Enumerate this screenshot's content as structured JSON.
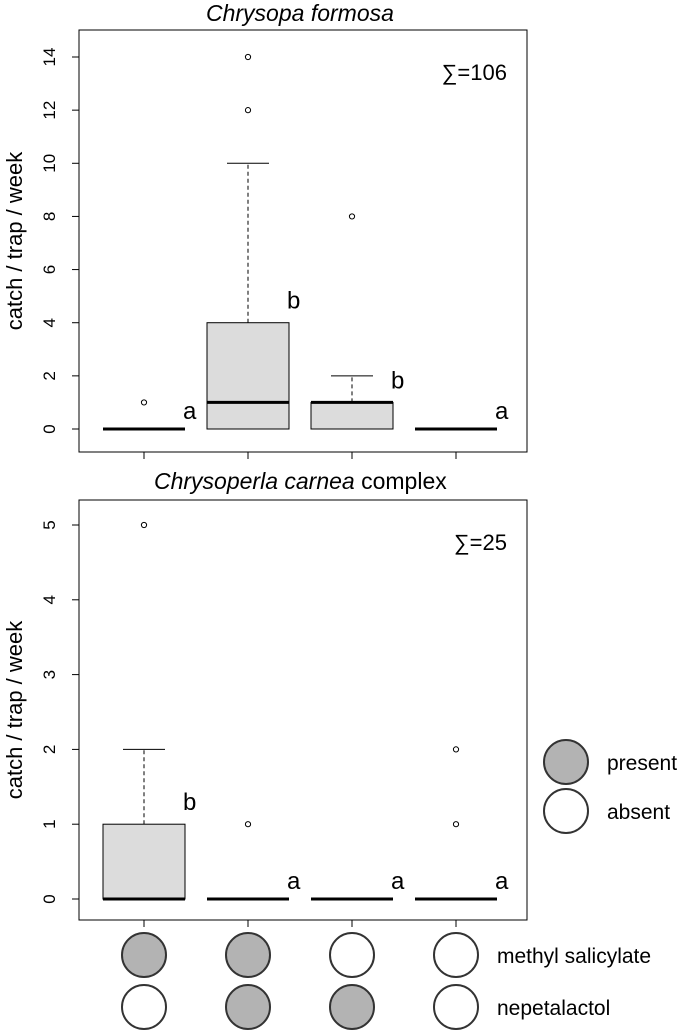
{
  "chart_data": [
    {
      "type": "box",
      "title_species": "Chrysopa formosa",
      "title_suffix": "",
      "ylabel": "catch / trap / week",
      "ylim": [
        0,
        14
      ],
      "yticks": [
        0,
        2,
        4,
        6,
        8,
        10,
        12,
        14
      ],
      "total_label": "∑=106",
      "boxes": [
        {
          "q1": 0,
          "median": 0,
          "q3": 0,
          "whisker_low": 0,
          "whisker_high": 0,
          "outliers": [
            1
          ],
          "letter": "a"
        },
        {
          "q1": 0,
          "median": 1,
          "q3": 4,
          "whisker_low": 0,
          "whisker_high": 10,
          "outliers": [
            12,
            14
          ],
          "letter": "b"
        },
        {
          "q1": 0,
          "median": 1,
          "q3": 1,
          "whisker_low": 0,
          "whisker_high": 2,
          "outliers": [
            8
          ],
          "letter": "b"
        },
        {
          "q1": 0,
          "median": 0,
          "q3": 0,
          "whisker_low": 0,
          "whisker_high": 0,
          "outliers": [],
          "letter": "a"
        }
      ]
    },
    {
      "type": "box",
      "title_species": "Chrysoperla carnea",
      "title_suffix": " complex",
      "ylabel": "catch / trap / week",
      "ylim": [
        0,
        5
      ],
      "yticks": [
        0,
        1,
        2,
        3,
        4,
        5
      ],
      "total_label": "∑=25",
      "boxes": [
        {
          "q1": 0,
          "median": 0,
          "q3": 1,
          "whisker_low": 0,
          "whisker_high": 2,
          "outliers": [
            5
          ],
          "letter": "b"
        },
        {
          "q1": 0,
          "median": 0,
          "q3": 0,
          "whisker_low": 0,
          "whisker_high": 0,
          "outliers": [
            1
          ],
          "letter": "a"
        },
        {
          "q1": 0,
          "median": 0,
          "q3": 0,
          "whisker_low": 0,
          "whisker_high": 0,
          "outliers": [],
          "letter": "a"
        },
        {
          "q1": 0,
          "median": 0,
          "q3": 0,
          "whisker_low": 0,
          "whisker_high": 0,
          "outliers": [
            1,
            2
          ],
          "letter": "a"
        }
      ]
    }
  ],
  "treatments": {
    "rows": [
      {
        "label": "methyl salicylate",
        "present": [
          true,
          true,
          false,
          false
        ]
      },
      {
        "label": "nepetalactol",
        "present": [
          false,
          true,
          true,
          false
        ]
      }
    ]
  },
  "legend": {
    "present_label": "present",
    "absent_label": "absent"
  },
  "colors": {
    "box_fill": "#dcdcdc",
    "present_fill": "#b3b3b3",
    "absent_fill": "#ffffff",
    "ink": "#000000"
  }
}
